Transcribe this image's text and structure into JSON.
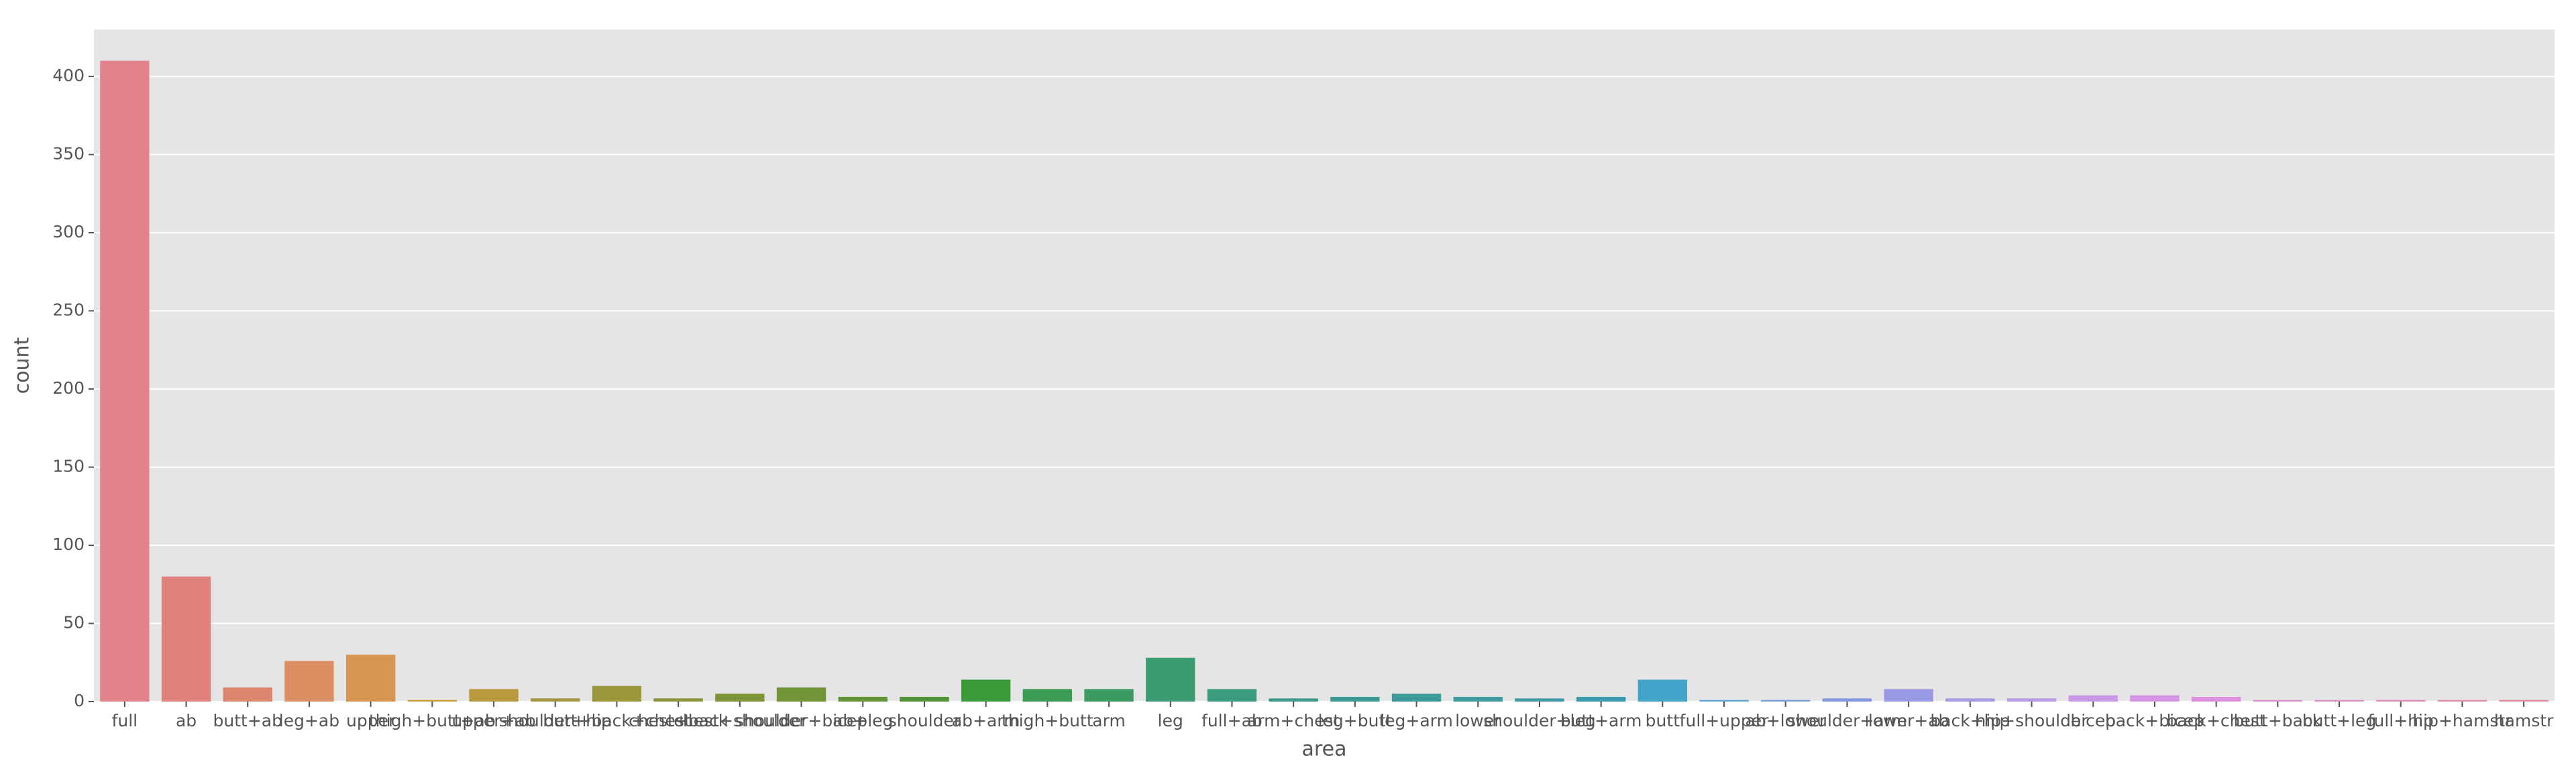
{
  "chart_data": {
    "type": "bar",
    "x_label": "area",
    "y_label": "count",
    "categories": [
      "full",
      "ab",
      "butt+ab",
      "leg+ab",
      "upper",
      "thigh+butt+ab",
      "upper+ab",
      "shoulder+hip",
      "butt+back+chest",
      "chest+back",
      "chest+shoulder",
      "shoulder+bicep",
      "ab+leg",
      "shoulder",
      "ab+arm",
      "thigh+butt",
      "arm",
      "leg",
      "full+ab",
      "arm+chest",
      "leg+butt",
      "leg+arm",
      "lower",
      "shoulder+leg",
      "butt+arm",
      "butt",
      "full+upper",
      "ab+lower",
      "shoulder+arm",
      "lower+ab",
      "back+hip",
      "hip+shoulder",
      "bicep",
      "back+bicep",
      "back+chest",
      "butt+back",
      "butt+leg",
      "full+hip",
      "hip+hamstr",
      "hamstr"
    ],
    "values": [
      410,
      80,
      9,
      26,
      30,
      1,
      8,
      2,
      10,
      2,
      5,
      9,
      3,
      3,
      14,
      8,
      8,
      28,
      8,
      2,
      3,
      5,
      3,
      2,
      3,
      14,
      1,
      1,
      2,
      8,
      2,
      2,
      4,
      4,
      3,
      1,
      1,
      1,
      1,
      1
    ],
    "colors": [
      "hsl(355,62%,70%)",
      "hsl(4,62%,68%)",
      "hsl(13,62%,65%)",
      "hsl(22,62%,62%)",
      "hsl(31,62%,58%)",
      "hsl(40,55%,52%)",
      "hsl(45,50%,48%)",
      "hsl(52,45%,44%)",
      "hsl(58,45%,42%)",
      "hsl(66,45%,40%)",
      "hsl(74,45%,40%)",
      "hsl(82,45%,40%)",
      "hsl(92,45%,40%)",
      "hsl(104,45%,40%)",
      "hsl(120,45%,42%)",
      "hsl(135,45%,42%)",
      "hsl(145,45%,42%)",
      "hsl(155,45%,42%)",
      "hsl(162,45%,42%)",
      "hsl(168,45%,42%)",
      "hsl(174,45%,42%)",
      "hsl(178,45%,42%)",
      "hsl(182,45%,43%)",
      "hsl(186,45%,44%)",
      "hsl(190,50%,46%)",
      "hsl(196,55%,52%)",
      "hsl(204,60%,60%)",
      "hsl(215,60%,66%)",
      "hsl(228,60%,70%)",
      "hsl(240,60%,75%)",
      "hsl(252,60%,75%)",
      "hsl(264,60%,75%)",
      "hsl(276,60%,75%)",
      "hsl(288,60%,74%)",
      "hsl(300,55%,72%)",
      "hsl(310,55%,72%)",
      "hsl(320,55%,72%)",
      "hsl(330,58%,72%)",
      "hsl(338,60%,72%)",
      "hsl(346,62%,72%)"
    ],
    "ylim": [
      0,
      430
    ],
    "yticks": [
      0,
      50,
      100,
      150,
      200,
      250,
      300,
      350,
      400
    ],
    "grid": true
  }
}
